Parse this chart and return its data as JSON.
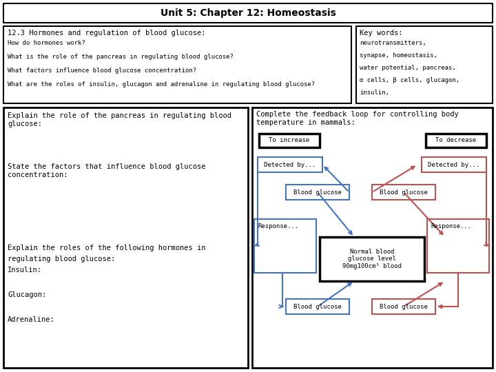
{
  "title": "Unit 5: Chapter 12: Homeostasis",
  "top_left_title": "12.3 Hormones and regulation of blood glucose:",
  "top_left_questions": [
    "How do hormones work?",
    "What is the role of the pancreas in regulating blood glucose?",
    "What factors influence blood glucose concentration?",
    "What are the roles of insulin, glucagon and adrenaline in regulating blood glucose?"
  ],
  "top_right_title": "Key words:",
  "top_right_lines": [
    "neurotransmitters,",
    "synapse, homeostasis,",
    "water potential, pancreas,",
    "α cells, β cells, glucagon,",
    "insulin,"
  ],
  "bottom_left_q1": "Explain the role of the pancreas in regulating blood\nglucose:",
  "bottom_left_q2": "State the factors that influence blood glucose\nconcentration:",
  "bottom_left_q3a": "Explain the roles of the following hormones in",
  "bottom_left_q3b": "regulating blood glucose:",
  "bottom_left_q3c": "Insulin:",
  "bottom_left_q3d": "Glucagon:",
  "bottom_left_q3e": "Adrenaline:",
  "bottom_right_title": "Complete the feedback loop for controlling body\ntemperature in mammals:",
  "blue": "#4472C4",
  "red": "#C0504D",
  "black": "#000000",
  "white": "#FFFFFF",
  "title_fontsize": 10,
  "body_fontsize": 7.5,
  "small_fontsize": 6.5,
  "diagram_fontsize": 6.5
}
